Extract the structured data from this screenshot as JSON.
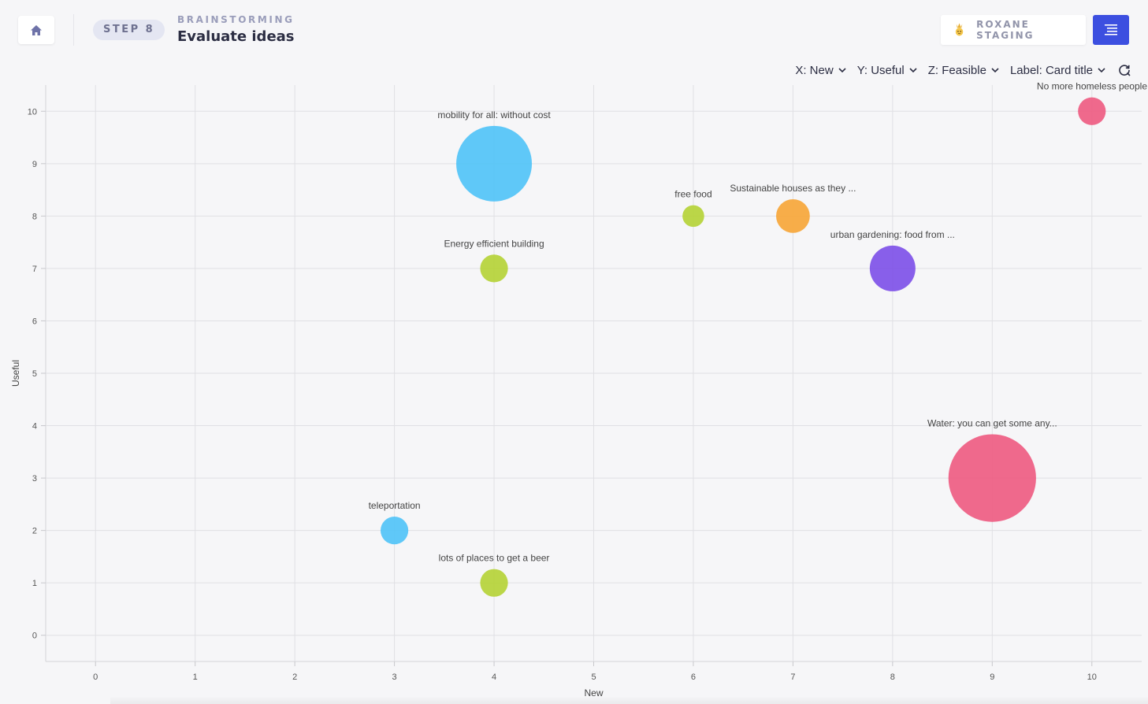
{
  "header": {
    "step_label": "STEP 8",
    "section": "BRAINSTORMING",
    "title": "Evaluate ideas",
    "user_name": "ROXANE STAGING"
  },
  "controls": {
    "x_axis": "X: New",
    "y_axis": "Y: Useful",
    "z_axis": "Z: Feasible",
    "label": "Label: Card title"
  },
  "icons": {
    "home": "home-icon",
    "avatar": "pineapple-avatar-icon",
    "menu": "hamburger-menu-icon",
    "chevron": "chevron-down-icon",
    "refresh": "refresh-icon"
  },
  "colors": {
    "accent": "#3c4fe0",
    "blue": "#4fc3f7",
    "green": "#b5d334",
    "orange": "#f7a535",
    "purple": "#7c4fe8",
    "pink": "#ee5a80"
  },
  "chart_data": {
    "type": "scatter",
    "xlabel": "New",
    "ylabel": "Useful",
    "xlim": [
      -0.5,
      10.5
    ],
    "ylim": [
      -0.5,
      10.5
    ],
    "xticks": [
      0,
      1,
      2,
      3,
      4,
      5,
      6,
      7,
      8,
      9,
      10
    ],
    "yticks": [
      0,
      1,
      2,
      3,
      4,
      5,
      6,
      7,
      8,
      9,
      10
    ],
    "grid": true,
    "points": [
      {
        "label": "No more homeless people",
        "x": 10,
        "y": 10,
        "size": 2,
        "color": "#ee5a80"
      },
      {
        "label": "mobility for all: without cost",
        "x": 4,
        "y": 9,
        "size": 10,
        "color": "#4fc3f7"
      },
      {
        "label": "free food",
        "x": 6,
        "y": 8,
        "size": 1,
        "color": "#b5d334"
      },
      {
        "label": "Sustainable houses as they ...",
        "x": 7,
        "y": 8,
        "size": 3,
        "color": "#f7a535"
      },
      {
        "label": "Energy efficient building",
        "x": 4,
        "y": 7,
        "size": 2,
        "color": "#b5d334"
      },
      {
        "label": "urban gardening: food from ...",
        "x": 8,
        "y": 7,
        "size": 5,
        "color": "#7c4fe8"
      },
      {
        "label": "Water: you can get some any...",
        "x": 9,
        "y": 3,
        "size": 12,
        "color": "#ee5a80"
      },
      {
        "label": "teleportation",
        "x": 3,
        "y": 2,
        "size": 2,
        "color": "#4fc3f7"
      },
      {
        "label": "lots of places to get a beer",
        "x": 4,
        "y": 1,
        "size": 2,
        "color": "#b5d334"
      }
    ]
  }
}
